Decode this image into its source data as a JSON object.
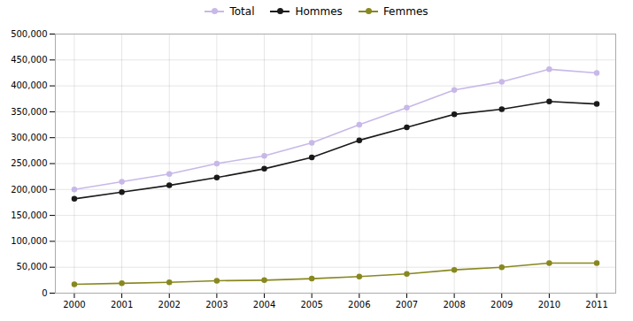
{
  "chart_data": {
    "type": "line",
    "x": [
      2000,
      2001,
      2002,
      2003,
      2004,
      2005,
      2006,
      2007,
      2008,
      2009,
      2010,
      2011
    ],
    "xlim": [
      1999.6,
      2011.4
    ],
    "xticks": [
      2000,
      2001,
      2002,
      2003,
      2004,
      2005,
      2006,
      2007,
      2008,
      2009,
      2010,
      2011
    ],
    "ylim": [
      0,
      500000
    ],
    "yticks": [
      0,
      {
        "value": 50000,
        "label": "50,000"
      },
      {
        "value": 100000,
        "label": "100,000"
      },
      {
        "value": 150000,
        "label": "150,000"
      },
      {
        "value": 200000,
        "label": "200,000"
      },
      {
        "value": 250000,
        "label": "250,000"
      },
      {
        "value": 300000,
        "label": "300,000"
      },
      {
        "value": 350000,
        "label": "350,000"
      },
      {
        "value": 400000,
        "label": "400,000"
      },
      {
        "value": 450000,
        "label": "450,000"
      },
      {
        "value": 500000,
        "label": "500,000"
      }
    ],
    "grid": true,
    "legend": "top",
    "marker": "circle",
    "series": [
      {
        "name": "Total",
        "color": "#c8b8e8",
        "values": [
          200000,
          215000,
          230000,
          250000,
          265000,
          290000,
          325000,
          358000,
          392000,
          408000,
          432000,
          425000
        ]
      },
      {
        "name": "Hommes",
        "color": "#1a1a1a",
        "values": [
          182000,
          195000,
          208000,
          223000,
          240000,
          262000,
          295000,
          320000,
          345000,
          355000,
          370000,
          365000
        ]
      },
      {
        "name": "Femmes",
        "color": "#888820",
        "values": [
          17000,
          19000,
          21000,
          24000,
          25000,
          28000,
          32000,
          37000,
          45000,
          50000,
          58000,
          58000
        ]
      }
    ]
  }
}
